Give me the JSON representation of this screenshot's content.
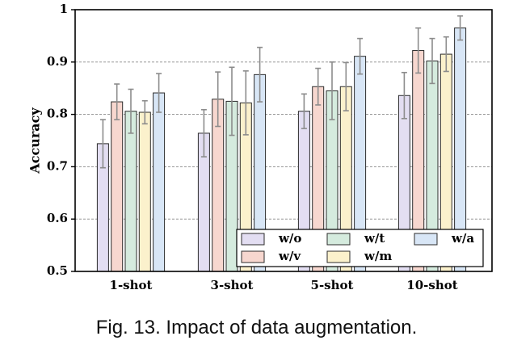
{
  "caption": "Fig. 13.  Impact of data augmentation.",
  "chart_data": {
    "type": "bar",
    "title": "",
    "xlabel": "",
    "ylabel": "Accuracy",
    "ylim": [
      0.5,
      1.0
    ],
    "yticks": [
      0.5,
      0.6,
      0.7,
      0.8,
      0.9,
      1.0
    ],
    "ytick_labels": [
      "0.5",
      "0.6",
      "0.7",
      "0.8",
      "0.9",
      "1"
    ],
    "grid": "horizontal dashed",
    "legend_position": "bottom-right",
    "categories": [
      "1-shot",
      "3-shot",
      "5-shot",
      "10-shot"
    ],
    "series": [
      {
        "name": "w/o",
        "color": "#e3def2",
        "values": [
          0.744,
          0.764,
          0.806,
          0.836
        ],
        "error": [
          0.046,
          0.045,
          0.033,
          0.044
        ]
      },
      {
        "name": "w/v",
        "color": "#f7d7cf",
        "values": [
          0.824,
          0.829,
          0.853,
          0.922
        ],
        "error": [
          0.034,
          0.052,
          0.035,
          0.043
        ]
      },
      {
        "name": "w/t",
        "color": "#d5ebde",
        "values": [
          0.806,
          0.825,
          0.845,
          0.902
        ],
        "error": [
          0.042,
          0.065,
          0.055,
          0.043
        ]
      },
      {
        "name": "w/m",
        "color": "#fbf1cc",
        "values": [
          0.804,
          0.822,
          0.853,
          0.915
        ],
        "error": [
          0.022,
          0.061,
          0.046,
          0.033
        ]
      },
      {
        "name": "w/a",
        "color": "#d8e6f6",
        "values": [
          0.841,
          0.876,
          0.911,
          0.965
        ],
        "error": [
          0.037,
          0.052,
          0.034,
          0.023
        ]
      }
    ]
  }
}
